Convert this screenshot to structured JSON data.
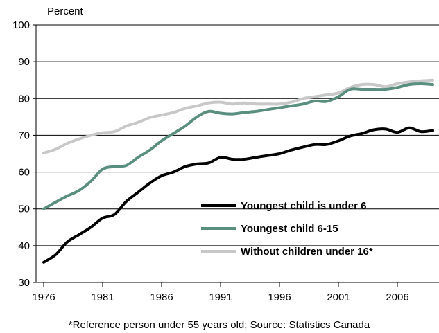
{
  "chart_data": {
    "type": "line",
    "ylabel": "Percent",
    "footnote": "*Reference person under 55 years old; Source: Statistics Canada",
    "xlim": [
      1976,
      2009
    ],
    "ylim": [
      30,
      100
    ],
    "xticks": [
      1976,
      1981,
      1986,
      1991,
      1996,
      2001,
      2006
    ],
    "yticks": [
      30,
      40,
      50,
      60,
      70,
      80,
      90,
      100
    ],
    "legend_position": "lower-right",
    "x": [
      1976,
      1977,
      1978,
      1979,
      1980,
      1981,
      1982,
      1983,
      1984,
      1985,
      1986,
      1987,
      1988,
      1989,
      1990,
      1991,
      1992,
      1993,
      1994,
      1995,
      1996,
      1997,
      1998,
      1999,
      2000,
      2001,
      2002,
      2003,
      2004,
      2005,
      2006,
      2007,
      2008,
      2009
    ],
    "series": [
      {
        "name": "Youngest child is under 6",
        "color": "#000000",
        "values": [
          35.5,
          37.5,
          41.0,
          43.0,
          45.0,
          47.5,
          48.5,
          52.0,
          54.5,
          57.0,
          59.0,
          60.0,
          61.5,
          62.2,
          62.5,
          64.0,
          63.5,
          63.5,
          64.0,
          64.5,
          65.0,
          66.0,
          66.8,
          67.5,
          67.5,
          68.5,
          69.8,
          70.5,
          71.5,
          71.7,
          70.8,
          72.0,
          71.0,
          71.3
        ]
      },
      {
        "name": "Youngest child 6-15",
        "color": "#5a8f80",
        "values": [
          50.0,
          51.8,
          53.5,
          55.0,
          57.5,
          60.8,
          61.5,
          61.8,
          64.0,
          66.0,
          68.5,
          70.5,
          72.5,
          75.0,
          76.5,
          76.0,
          75.8,
          76.2,
          76.5,
          77.0,
          77.5,
          78.0,
          78.5,
          79.3,
          79.2,
          80.5,
          82.5,
          82.5,
          82.5,
          82.5,
          83.0,
          83.8,
          84.0,
          83.8
        ]
      },
      {
        "name": "Without children under 16*",
        "color": "#c8c8c8",
        "values": [
          65.2,
          66.2,
          67.8,
          69.0,
          70.0,
          70.7,
          71.0,
          72.5,
          73.5,
          74.8,
          75.5,
          76.2,
          77.3,
          78.0,
          78.8,
          79.0,
          78.5,
          78.8,
          78.5,
          78.5,
          78.5,
          79.0,
          80.0,
          80.5,
          81.0,
          81.5,
          83.0,
          83.8,
          83.8,
          83.2,
          84.0,
          84.5,
          84.8,
          85.0
        ]
      }
    ]
  }
}
